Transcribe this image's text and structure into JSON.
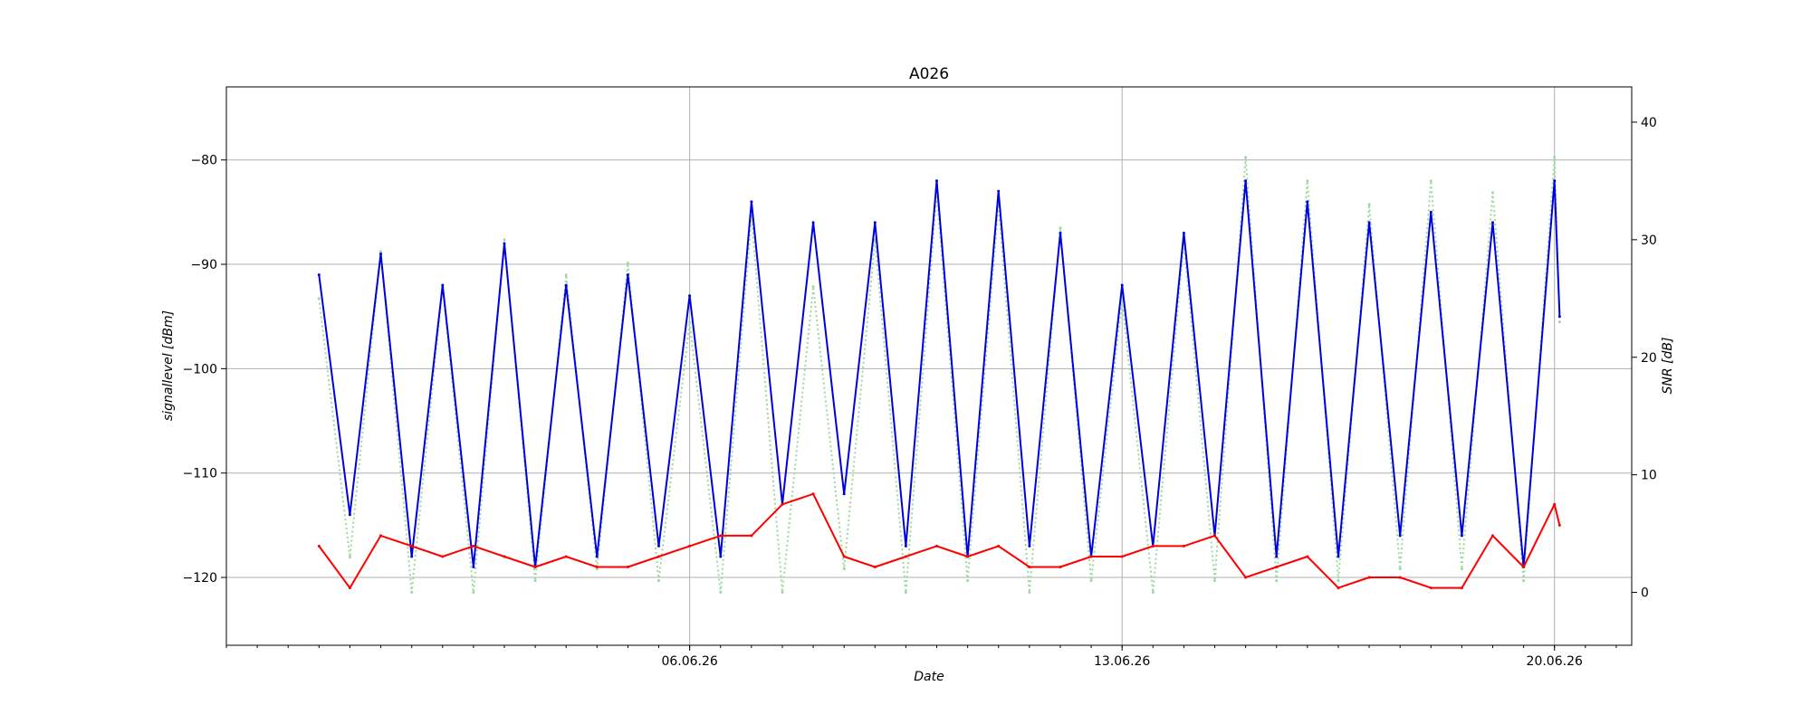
{
  "chart_data": {
    "type": "line",
    "title": "A026",
    "xlabel": "Date",
    "ylabel_left": "signallevel [dBm]",
    "ylabel_right": "SNR [dB]",
    "grid": true,
    "legend": "none",
    "xlim": [
      "2026-05-29T12:00",
      "2026-06-21T06:00"
    ],
    "ylim_left": [
      -126.5,
      -73
    ],
    "ylim_right": [
      -4.5,
      43
    ],
    "x_ticks": [
      {
        "date": "2026-06-06",
        "label": "06.06.26"
      },
      {
        "date": "2026-06-13",
        "label": "13.06.26"
      },
      {
        "date": "2026-06-20",
        "label": "20.06.26"
      }
    ],
    "y_ticks_left": [
      -120,
      -110,
      -100,
      -90,
      -80
    ],
    "y_ticks_right": [
      0,
      10,
      20,
      30,
      40
    ],
    "colors": {
      "signal": "#0000dd",
      "noise": "#ff0000",
      "snr": "#9fd89f"
    },
    "series": [
      {
        "key": "signal",
        "axis": "left",
        "style": "solid",
        "t": [
          "2026-05-31T00:00",
          "2026-05-31T12:00",
          "2026-06-01T00:00",
          "2026-06-01T12:00",
          "2026-06-02T00:00",
          "2026-06-02T12:00",
          "2026-06-03T00:00",
          "2026-06-03T12:00",
          "2026-06-04T00:00",
          "2026-06-04T12:00",
          "2026-06-05T00:00",
          "2026-06-05T12:00",
          "2026-06-06T00:00",
          "2026-06-06T12:00",
          "2026-06-07T00:00",
          "2026-06-07T12:00",
          "2026-06-08T00:00",
          "2026-06-08T12:00",
          "2026-06-09T00:00",
          "2026-06-09T12:00",
          "2026-06-10T00:00",
          "2026-06-10T12:00",
          "2026-06-11T00:00",
          "2026-06-11T12:00",
          "2026-06-12T00:00",
          "2026-06-12T12:00",
          "2026-06-13T00:00",
          "2026-06-13T12:00",
          "2026-06-14T00:00",
          "2026-06-14T12:00",
          "2026-06-15T00:00",
          "2026-06-15T12:00",
          "2026-06-16T00:00",
          "2026-06-16T12:00",
          "2026-06-17T00:00",
          "2026-06-17T12:00",
          "2026-06-18T00:00",
          "2026-06-18T12:00",
          "2026-06-19T00:00",
          "2026-06-19T12:00",
          "2026-06-20T00:00",
          "2026-06-20T02:00"
        ],
        "values": [
          -91,
          -114,
          -89,
          -118,
          -92,
          -119,
          -88,
          -119,
          -92,
          -118,
          -91,
          -117,
          -93,
          -118,
          -84,
          -113,
          -86,
          -112,
          -86,
          -117,
          -82,
          -118,
          -83,
          -117,
          -87,
          -118,
          -92,
          -117,
          -87,
          -116,
          -82,
          -118,
          -84,
          -118,
          -86,
          -116,
          -85,
          -116,
          -86,
          -119,
          -82,
          -95
        ]
      },
      {
        "key": "noise",
        "axis": "left",
        "style": "solid",
        "t": [
          "2026-05-31T00:00",
          "2026-05-31T12:00",
          "2026-06-01T00:00",
          "2026-06-01T12:00",
          "2026-06-02T00:00",
          "2026-06-02T12:00",
          "2026-06-03T00:00",
          "2026-06-03T12:00",
          "2026-06-04T00:00",
          "2026-06-04T12:00",
          "2026-06-05T00:00",
          "2026-06-05T12:00",
          "2026-06-06T00:00",
          "2026-06-06T12:00",
          "2026-06-07T00:00",
          "2026-06-07T12:00",
          "2026-06-08T00:00",
          "2026-06-08T12:00",
          "2026-06-09T00:00",
          "2026-06-09T12:00",
          "2026-06-10T00:00",
          "2026-06-10T12:00",
          "2026-06-11T00:00",
          "2026-06-11T12:00",
          "2026-06-12T00:00",
          "2026-06-12T12:00",
          "2026-06-13T00:00",
          "2026-06-13T12:00",
          "2026-06-14T00:00",
          "2026-06-14T12:00",
          "2026-06-15T00:00",
          "2026-06-15T12:00",
          "2026-06-16T00:00",
          "2026-06-16T12:00",
          "2026-06-17T00:00",
          "2026-06-17T12:00",
          "2026-06-18T00:00",
          "2026-06-18T12:00",
          "2026-06-19T00:00",
          "2026-06-19T12:00",
          "2026-06-20T00:00",
          "2026-06-20T02:00"
        ],
        "values": [
          -117,
          -121,
          -116,
          -117,
          -118,
          -117,
          -118,
          -119,
          -118,
          -119,
          -119,
          -118,
          -117,
          -116,
          -116,
          -113,
          -112,
          -118,
          -119,
          -118,
          -117,
          -118,
          -117,
          -119,
          -119,
          -118,
          -118,
          -117,
          -117,
          -116,
          -120,
          -119,
          -118,
          -121,
          -120,
          -120,
          -121,
          -121,
          -116,
          -119,
          -113,
          -115
        ]
      },
      {
        "key": "snr",
        "axis": "right",
        "style": "dotted",
        "t": [
          "2026-05-31T00:00",
          "2026-05-31T12:00",
          "2026-06-01T00:00",
          "2026-06-01T12:00",
          "2026-06-02T00:00",
          "2026-06-02T12:00",
          "2026-06-03T00:00",
          "2026-06-03T12:00",
          "2026-06-04T00:00",
          "2026-06-04T12:00",
          "2026-06-05T00:00",
          "2026-06-05T12:00",
          "2026-06-06T00:00",
          "2026-06-06T12:00",
          "2026-06-07T00:00",
          "2026-06-07T12:00",
          "2026-06-08T00:00",
          "2026-06-08T12:00",
          "2026-06-09T00:00",
          "2026-06-09T12:00",
          "2026-06-10T00:00",
          "2026-06-10T12:00",
          "2026-06-11T00:00",
          "2026-06-11T12:00",
          "2026-06-12T00:00",
          "2026-06-12T12:00",
          "2026-06-13T00:00",
          "2026-06-13T12:00",
          "2026-06-14T00:00",
          "2026-06-14T12:00",
          "2026-06-15T00:00",
          "2026-06-15T12:00",
          "2026-06-16T00:00",
          "2026-06-16T12:00",
          "2026-06-17T00:00",
          "2026-06-17T12:00",
          "2026-06-18T00:00",
          "2026-06-18T12:00",
          "2026-06-19T00:00",
          "2026-06-19T12:00",
          "2026-06-20T00:00",
          "2026-06-20T02:00"
        ],
        "values": [
          25,
          3,
          29,
          0,
          26,
          0,
          30,
          1,
          27,
          2,
          28,
          1,
          23,
          0,
          32,
          0,
          26,
          2,
          30,
          0,
          34,
          1,
          33,
          0,
          31,
          1,
          25,
          0,
          30,
          1,
          37,
          1,
          35,
          1,
          33,
          2,
          35,
          2,
          34,
          1,
          37,
          23
        ]
      }
    ]
  }
}
